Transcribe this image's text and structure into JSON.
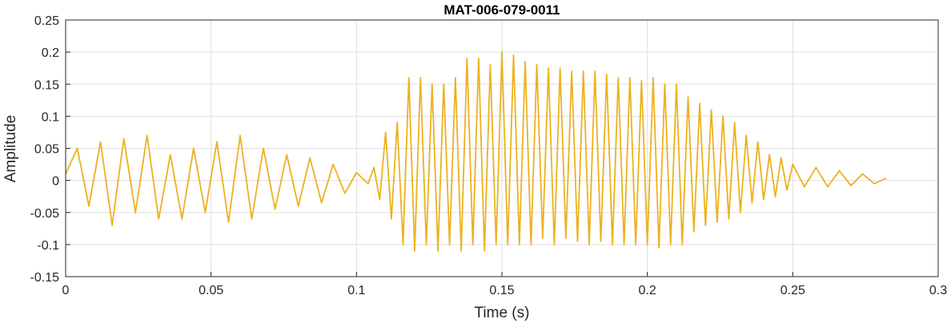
{
  "chart_data": {
    "type": "line",
    "title": "MAT-006-079-0011",
    "xlabel": "Time (s)",
    "ylabel": "Amplitude",
    "xlim": [
      0,
      0.3
    ],
    "ylim": [
      -0.15,
      0.25
    ],
    "x_ticks": [
      0,
      0.05,
      0.1,
      0.15,
      0.2,
      0.25,
      0.3
    ],
    "x_tick_labels": [
      "0",
      "0.05",
      "0.1",
      "0.15",
      "0.2",
      "0.25",
      "0.3"
    ],
    "y_ticks": [
      -0.15,
      -0.1,
      -0.05,
      0,
      0.05,
      0.1,
      0.15,
      0.2,
      0.25
    ],
    "y_tick_labels": [
      "-0.15",
      "-0.1",
      "-0.05",
      "0",
      "0.05",
      "0.1",
      "0.15",
      "0.2",
      "0.25"
    ],
    "grid": true,
    "series": [
      {
        "color": "#EDB120",
        "x": [
          0,
          0.004,
          0.008,
          0.012,
          0.016,
          0.02,
          0.024,
          0.028,
          0.032,
          0.036,
          0.04,
          0.044,
          0.048,
          0.052,
          0.056,
          0.06,
          0.064,
          0.068,
          0.072,
          0.076,
          0.08,
          0.084,
          0.088,
          0.092,
          0.096,
          0.1,
          0.104,
          0.106,
          0.108,
          0.11,
          0.112,
          0.114,
          0.116,
          0.118,
          0.12,
          0.122,
          0.124,
          0.126,
          0.128,
          0.13,
          0.132,
          0.134,
          0.136,
          0.138,
          0.14,
          0.142,
          0.144,
          0.146,
          0.148,
          0.15,
          0.152,
          0.154,
          0.156,
          0.158,
          0.16,
          0.162,
          0.164,
          0.166,
          0.168,
          0.17,
          0.172,
          0.174,
          0.176,
          0.178,
          0.18,
          0.182,
          0.184,
          0.186,
          0.188,
          0.19,
          0.192,
          0.194,
          0.196,
          0.198,
          0.2,
          0.202,
          0.204,
          0.206,
          0.208,
          0.21,
          0.212,
          0.214,
          0.216,
          0.218,
          0.22,
          0.222,
          0.224,
          0.226,
          0.228,
          0.23,
          0.232,
          0.234,
          0.236,
          0.238,
          0.24,
          0.242,
          0.244,
          0.246,
          0.248,
          0.25,
          0.254,
          0.258,
          0.262,
          0.266,
          0.27,
          0.274,
          0.278,
          0.282
        ],
        "y": [
          0.01,
          0.05,
          -0.04,
          0.06,
          -0.07,
          0.065,
          -0.05,
          0.07,
          -0.06,
          0.04,
          -0.06,
          0.05,
          -0.05,
          0.06,
          -0.065,
          0.07,
          -0.06,
          0.05,
          -0.045,
          0.04,
          -0.04,
          0.035,
          -0.035,
          0.025,
          -0.02,
          0.012,
          -0.005,
          0.02,
          -0.03,
          0.075,
          -0.06,
          0.09,
          -0.1,
          0.16,
          -0.11,
          0.16,
          -0.1,
          0.15,
          -0.11,
          0.15,
          -0.1,
          0.16,
          -0.11,
          0.19,
          -0.1,
          0.19,
          -0.11,
          0.18,
          -0.1,
          0.2,
          -0.1,
          0.195,
          -0.1,
          0.185,
          -0.1,
          0.18,
          -0.09,
          0.175,
          -0.1,
          0.175,
          -0.09,
          0.17,
          -0.095,
          0.17,
          -0.1,
          0.17,
          -0.095,
          0.165,
          -0.1,
          0.16,
          -0.1,
          0.16,
          -0.1,
          0.155,
          -0.1,
          0.16,
          -0.105,
          0.15,
          -0.1,
          0.15,
          -0.1,
          0.13,
          -0.08,
          0.12,
          -0.07,
          0.11,
          -0.065,
          0.1,
          -0.06,
          0.09,
          -0.05,
          0.07,
          -0.035,
          0.06,
          -0.03,
          0.04,
          -0.025,
          0.035,
          -0.015,
          0.025,
          -0.01,
          0.02,
          -0.01,
          0.015,
          -0.008,
          0.01,
          -0.005,
          0.003
        ]
      }
    ]
  }
}
